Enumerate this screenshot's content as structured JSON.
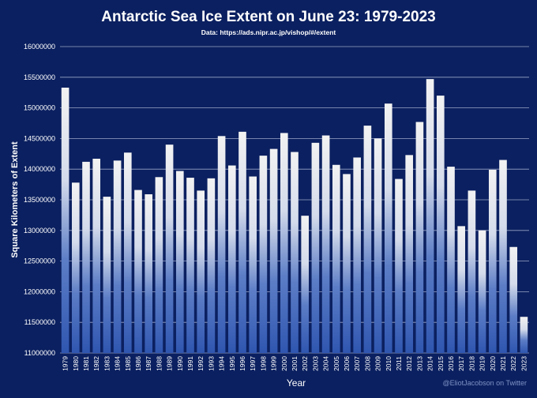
{
  "colors": {
    "background": "#0b2060",
    "grid": "#c9d2ea",
    "text": "#ffffff",
    "bar_top": "#f2f2f2",
    "bar_bottom": "#2f56b0",
    "credit": "#7f93c6"
  },
  "chart_data": {
    "type": "bar",
    "title": "Antarctic Sea Ice Extent on June 23: 1979-2023",
    "subtitle": "Data: https://ads.nipr.ac.jp/vishop/#/extent",
    "xlabel": "Year",
    "ylabel": "Square Kilometers of Extent",
    "ylim": [
      11000000,
      16000000
    ],
    "yticks": [
      11000000,
      11500000,
      12000000,
      12500000,
      13000000,
      13500000,
      14000000,
      14500000,
      15000000,
      15500000,
      16000000
    ],
    "ytick_labels": [
      "11000000",
      "11500000",
      "12000000",
      "12500000",
      "13000000",
      "13500000",
      "14000000",
      "14500000",
      "15000000",
      "15500000",
      "16000000"
    ],
    "grid": true,
    "categories": [
      "1979",
      "1980",
      "1981",
      "1982",
      "1983",
      "1984",
      "1985",
      "1986",
      "1987",
      "1988",
      "1989",
      "1990",
      "1991",
      "1992",
      "1993",
      "1994",
      "1995",
      "1996",
      "1997",
      "1998",
      "1999",
      "2000",
      "2001",
      "2002",
      "2003",
      "2004",
      "2005",
      "2006",
      "2007",
      "2008",
      "2009",
      "2010",
      "2011",
      "2012",
      "2013",
      "2014",
      "2015",
      "2016",
      "2017",
      "2018",
      "2019",
      "2020",
      "2021",
      "2022",
      "2023"
    ],
    "values": [
      15330000,
      13780000,
      14120000,
      14170000,
      13550000,
      14140000,
      14270000,
      13660000,
      13590000,
      13870000,
      14400000,
      13970000,
      13860000,
      13650000,
      13850000,
      14540000,
      14060000,
      14610000,
      13880000,
      14220000,
      14330000,
      14590000,
      14280000,
      13240000,
      14430000,
      14550000,
      14070000,
      13920000,
      14190000,
      14710000,
      14500000,
      15070000,
      13840000,
      14230000,
      14770000,
      15470000,
      15200000,
      14040000,
      13070000,
      13650000,
      13000000,
      13990000,
      14150000,
      12730000,
      11590000
    ],
    "credit": "@EliotJacobson on Twitter"
  }
}
